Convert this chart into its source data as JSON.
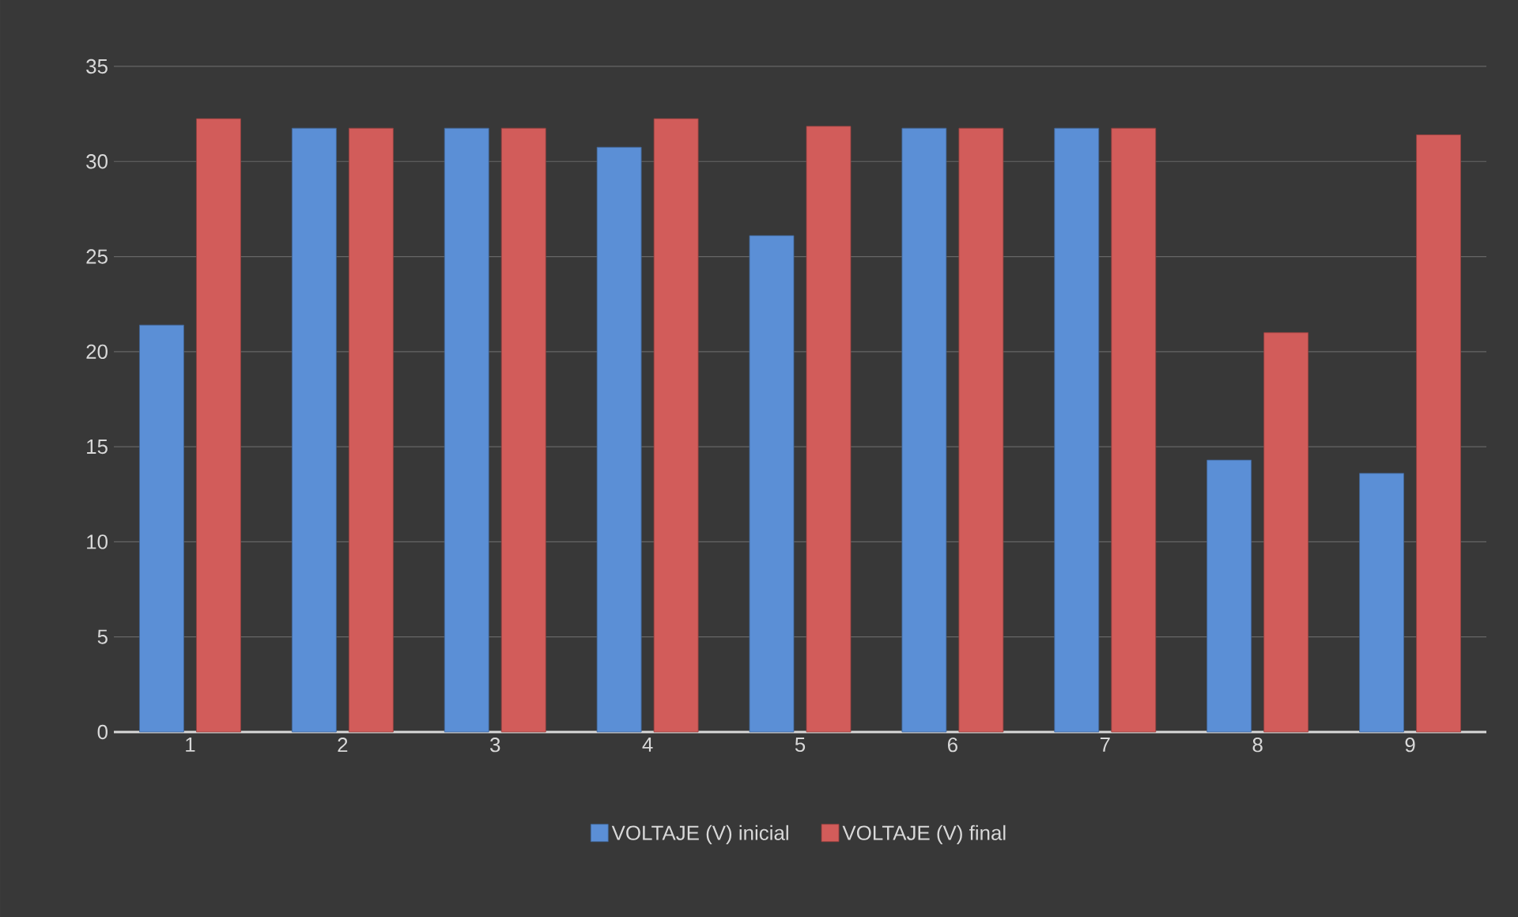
{
  "chart_data": {
    "type": "bar",
    "categories": [
      "1",
      "2",
      "3",
      "4",
      "5",
      "6",
      "7",
      "8",
      "9"
    ],
    "series": [
      {
        "name": "VOLTAJE (V) inicial",
        "color": "#5b8fd6",
        "values": [
          21.4,
          31.75,
          31.75,
          30.75,
          26.1,
          31.75,
          31.75,
          14.3,
          13.6
        ]
      },
      {
        "name": "VOLTAJE (V) final",
        "color": "#d25c5a",
        "values": [
          32.25,
          31.75,
          31.75,
          32.25,
          31.85,
          31.75,
          31.75,
          21.0,
          31.4
        ]
      }
    ],
    "ylim": [
      0,
      35
    ],
    "yticks": [
      0,
      5,
      10,
      15,
      20,
      25,
      30,
      35
    ],
    "grid": "y",
    "legend": "bottom"
  }
}
